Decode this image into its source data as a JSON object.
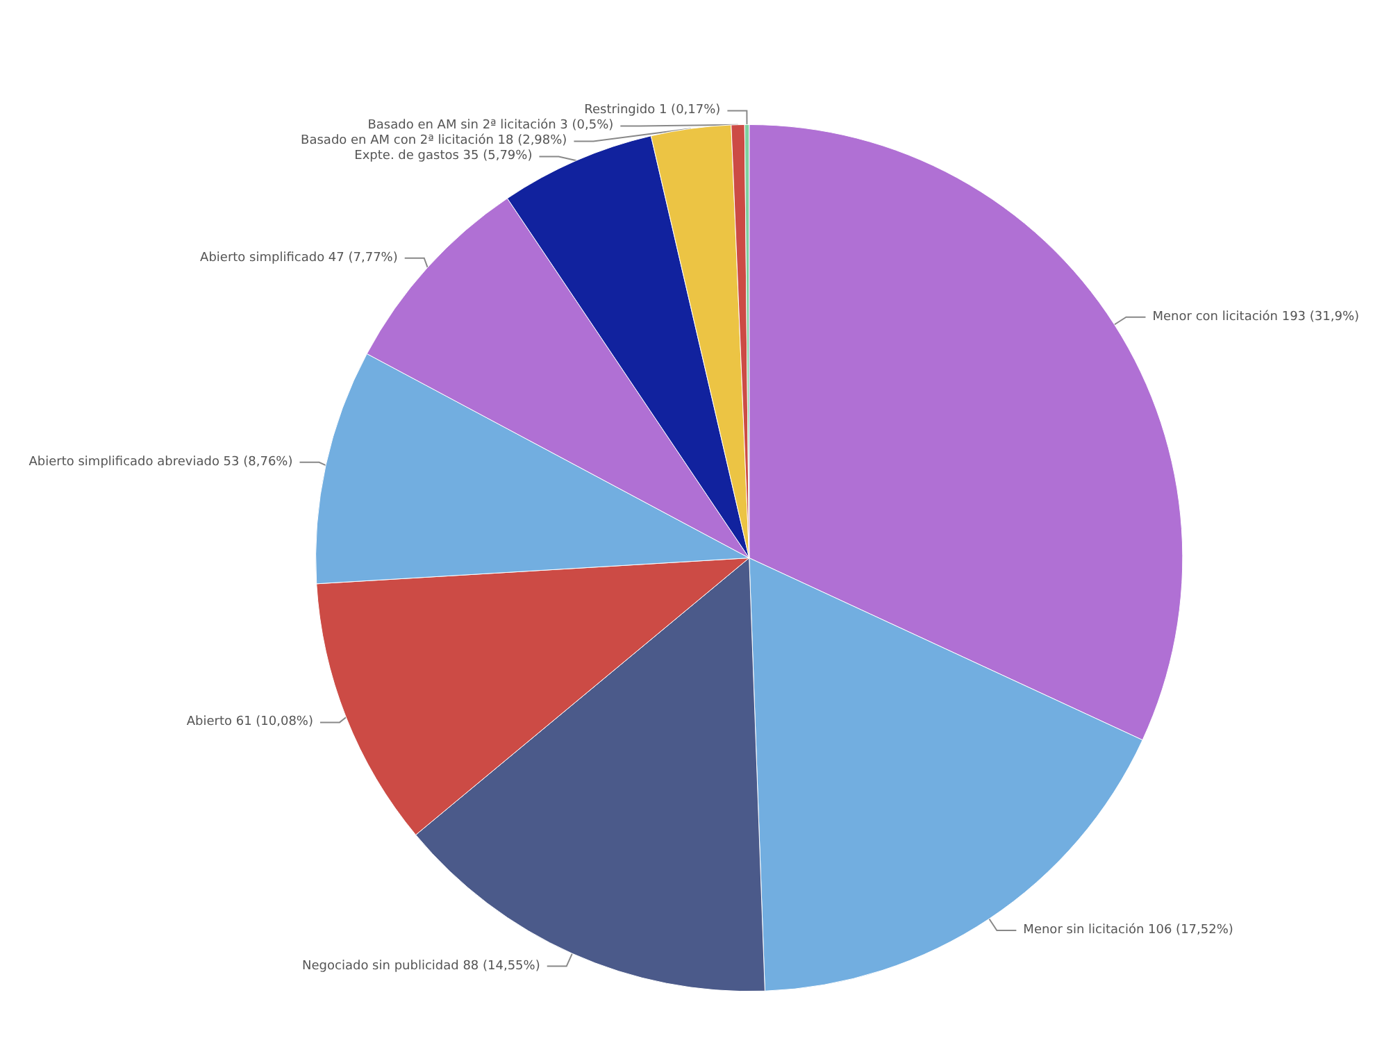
{
  "chart_data": {
    "type": "pie",
    "categories": [
      "Menor con licitación",
      "Menor sin licitación",
      "Negociado sin publicidad",
      "Abierto",
      "Abierto simplificado abreviado",
      "Abierto simplificado",
      "Expte. de gastos",
      "Basado en AM con 2ª licitación",
      "Basado en AM sin 2ª licitación",
      "Restringido"
    ],
    "values": [
      193,
      106,
      88,
      61,
      53,
      47,
      35,
      18,
      3,
      1
    ],
    "value_labels": [
      "193 (31,9%)",
      "106 (17,52%)",
      "88 (14,55%)",
      "61 (10,08%)",
      "53 (8,76%)",
      "47 (7,77%)",
      "35 (5,79%)",
      "18 (2,98%)",
      "3 (0,5%)",
      "1 (0,17%)"
    ],
    "colors": [
      "#b070d4",
      "#72aee0",
      "#4b5a8a",
      "#cc4b45",
      "#72aee0",
      "#b070d4",
      "#11229e",
      "#ecc444",
      "#cc4b45",
      "#7ed0a0"
    ],
    "legend": false
  }
}
